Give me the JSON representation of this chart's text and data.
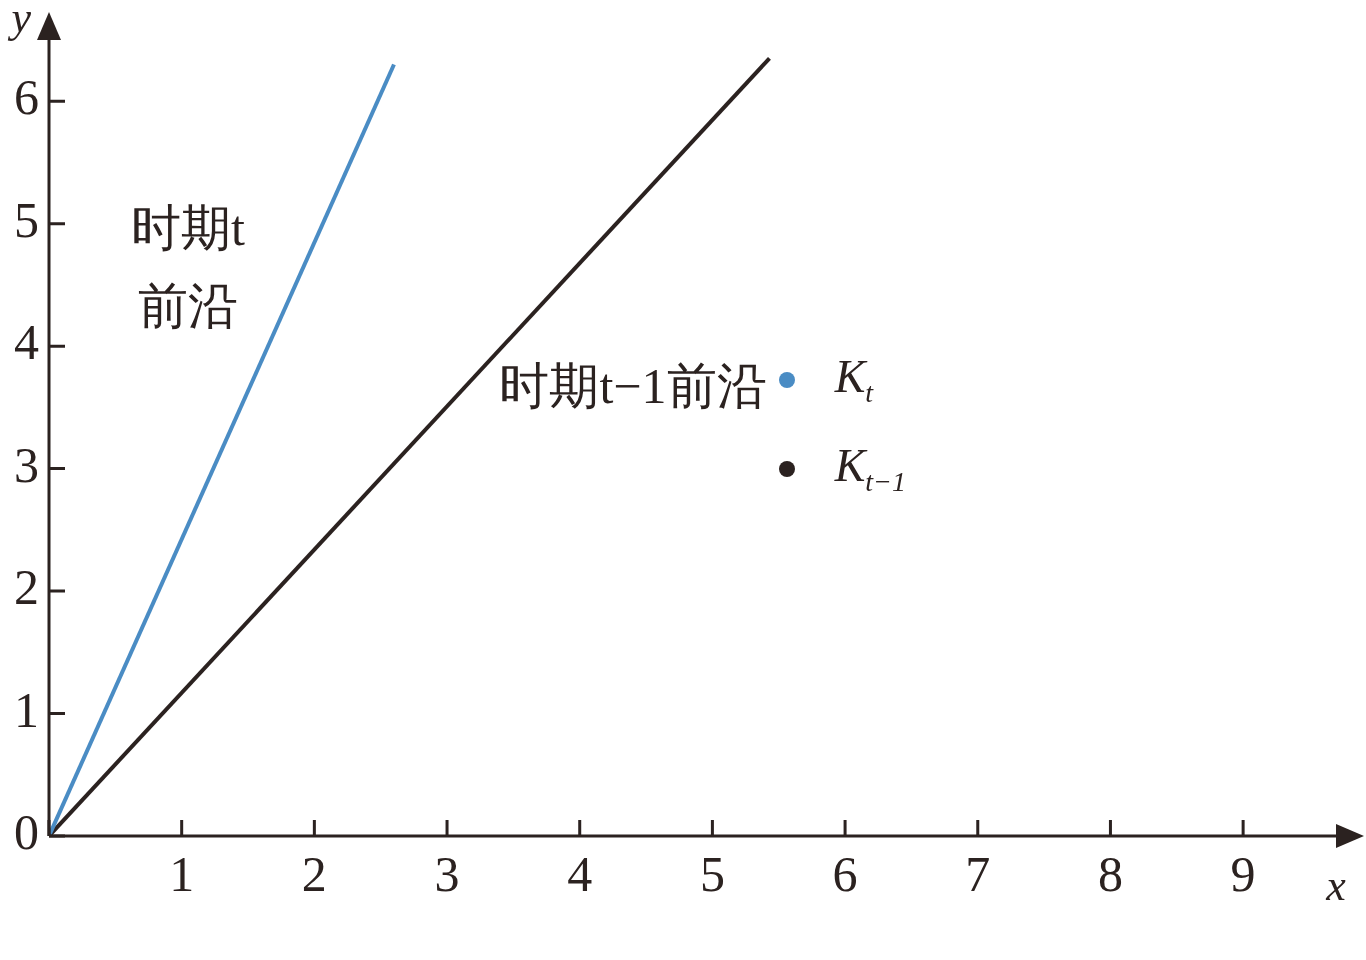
{
  "chart_data": {
    "type": "line",
    "xlim": [
      0,
      9.7
    ],
    "ylim": [
      0,
      6.5
    ],
    "xticks": [
      {
        "value": 0,
        "label": null
      },
      1,
      2,
      3,
      4,
      5,
      6,
      7,
      8,
      9
    ],
    "yticks": [
      0,
      1,
      2,
      3,
      4,
      5,
      6
    ],
    "xlabel": "x",
    "ylabel": "y",
    "series": [
      {
        "name": "K$_{t}$",
        "color": "#4a8cc4",
        "x": [
          0,
          2.6
        ],
        "values": [
          0,
          6.3
        ]
      },
      {
        "name": "K$_{t−1}$",
        "color": "#2b2220",
        "x": [
          0,
          5.43
        ],
        "values": [
          0,
          6.35
        ]
      }
    ],
    "annotations": [
      "时期t\n前沿",
      "时期t−1前沿"
    ],
    "legend": "right",
    "grid": false,
    "marker": "none",
    "line_style": "solid"
  }
}
